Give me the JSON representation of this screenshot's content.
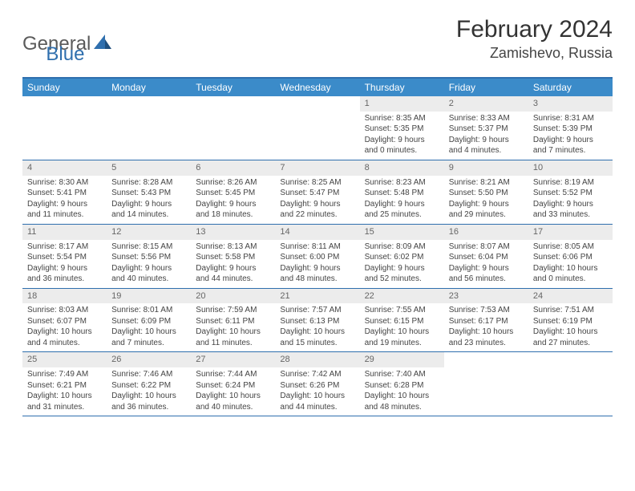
{
  "logo": {
    "text1": "General",
    "text2": "Blue"
  },
  "title": "February 2024",
  "location": "Zamishevo, Russia",
  "colors": {
    "header_bg": "#3b8bc9",
    "border": "#2f6fae",
    "daynum_bg": "#ececec",
    "text": "#444444",
    "logo_gray": "#5a5a5a",
    "logo_blue": "#2f6fae"
  },
  "day_headers": [
    "Sunday",
    "Monday",
    "Tuesday",
    "Wednesday",
    "Thursday",
    "Friday",
    "Saturday"
  ],
  "weeks": [
    [
      {
        "n": "",
        "sr": "",
        "ss": "",
        "dl": ""
      },
      {
        "n": "",
        "sr": "",
        "ss": "",
        "dl": ""
      },
      {
        "n": "",
        "sr": "",
        "ss": "",
        "dl": ""
      },
      {
        "n": "",
        "sr": "",
        "ss": "",
        "dl": ""
      },
      {
        "n": "1",
        "sr": "Sunrise: 8:35 AM",
        "ss": "Sunset: 5:35 PM",
        "dl": "Daylight: 9 hours and 0 minutes."
      },
      {
        "n": "2",
        "sr": "Sunrise: 8:33 AM",
        "ss": "Sunset: 5:37 PM",
        "dl": "Daylight: 9 hours and 4 minutes."
      },
      {
        "n": "3",
        "sr": "Sunrise: 8:31 AM",
        "ss": "Sunset: 5:39 PM",
        "dl": "Daylight: 9 hours and 7 minutes."
      }
    ],
    [
      {
        "n": "4",
        "sr": "Sunrise: 8:30 AM",
        "ss": "Sunset: 5:41 PM",
        "dl": "Daylight: 9 hours and 11 minutes."
      },
      {
        "n": "5",
        "sr": "Sunrise: 8:28 AM",
        "ss": "Sunset: 5:43 PM",
        "dl": "Daylight: 9 hours and 14 minutes."
      },
      {
        "n": "6",
        "sr": "Sunrise: 8:26 AM",
        "ss": "Sunset: 5:45 PM",
        "dl": "Daylight: 9 hours and 18 minutes."
      },
      {
        "n": "7",
        "sr": "Sunrise: 8:25 AM",
        "ss": "Sunset: 5:47 PM",
        "dl": "Daylight: 9 hours and 22 minutes."
      },
      {
        "n": "8",
        "sr": "Sunrise: 8:23 AM",
        "ss": "Sunset: 5:48 PM",
        "dl": "Daylight: 9 hours and 25 minutes."
      },
      {
        "n": "9",
        "sr": "Sunrise: 8:21 AM",
        "ss": "Sunset: 5:50 PM",
        "dl": "Daylight: 9 hours and 29 minutes."
      },
      {
        "n": "10",
        "sr": "Sunrise: 8:19 AM",
        "ss": "Sunset: 5:52 PM",
        "dl": "Daylight: 9 hours and 33 minutes."
      }
    ],
    [
      {
        "n": "11",
        "sr": "Sunrise: 8:17 AM",
        "ss": "Sunset: 5:54 PM",
        "dl": "Daylight: 9 hours and 36 minutes."
      },
      {
        "n": "12",
        "sr": "Sunrise: 8:15 AM",
        "ss": "Sunset: 5:56 PM",
        "dl": "Daylight: 9 hours and 40 minutes."
      },
      {
        "n": "13",
        "sr": "Sunrise: 8:13 AM",
        "ss": "Sunset: 5:58 PM",
        "dl": "Daylight: 9 hours and 44 minutes."
      },
      {
        "n": "14",
        "sr": "Sunrise: 8:11 AM",
        "ss": "Sunset: 6:00 PM",
        "dl": "Daylight: 9 hours and 48 minutes."
      },
      {
        "n": "15",
        "sr": "Sunrise: 8:09 AM",
        "ss": "Sunset: 6:02 PM",
        "dl": "Daylight: 9 hours and 52 minutes."
      },
      {
        "n": "16",
        "sr": "Sunrise: 8:07 AM",
        "ss": "Sunset: 6:04 PM",
        "dl": "Daylight: 9 hours and 56 minutes."
      },
      {
        "n": "17",
        "sr": "Sunrise: 8:05 AM",
        "ss": "Sunset: 6:06 PM",
        "dl": "Daylight: 10 hours and 0 minutes."
      }
    ],
    [
      {
        "n": "18",
        "sr": "Sunrise: 8:03 AM",
        "ss": "Sunset: 6:07 PM",
        "dl": "Daylight: 10 hours and 4 minutes."
      },
      {
        "n": "19",
        "sr": "Sunrise: 8:01 AM",
        "ss": "Sunset: 6:09 PM",
        "dl": "Daylight: 10 hours and 7 minutes."
      },
      {
        "n": "20",
        "sr": "Sunrise: 7:59 AM",
        "ss": "Sunset: 6:11 PM",
        "dl": "Daylight: 10 hours and 11 minutes."
      },
      {
        "n": "21",
        "sr": "Sunrise: 7:57 AM",
        "ss": "Sunset: 6:13 PM",
        "dl": "Daylight: 10 hours and 15 minutes."
      },
      {
        "n": "22",
        "sr": "Sunrise: 7:55 AM",
        "ss": "Sunset: 6:15 PM",
        "dl": "Daylight: 10 hours and 19 minutes."
      },
      {
        "n": "23",
        "sr": "Sunrise: 7:53 AM",
        "ss": "Sunset: 6:17 PM",
        "dl": "Daylight: 10 hours and 23 minutes."
      },
      {
        "n": "24",
        "sr": "Sunrise: 7:51 AM",
        "ss": "Sunset: 6:19 PM",
        "dl": "Daylight: 10 hours and 27 minutes."
      }
    ],
    [
      {
        "n": "25",
        "sr": "Sunrise: 7:49 AM",
        "ss": "Sunset: 6:21 PM",
        "dl": "Daylight: 10 hours and 31 minutes."
      },
      {
        "n": "26",
        "sr": "Sunrise: 7:46 AM",
        "ss": "Sunset: 6:22 PM",
        "dl": "Daylight: 10 hours and 36 minutes."
      },
      {
        "n": "27",
        "sr": "Sunrise: 7:44 AM",
        "ss": "Sunset: 6:24 PM",
        "dl": "Daylight: 10 hours and 40 minutes."
      },
      {
        "n": "28",
        "sr": "Sunrise: 7:42 AM",
        "ss": "Sunset: 6:26 PM",
        "dl": "Daylight: 10 hours and 44 minutes."
      },
      {
        "n": "29",
        "sr": "Sunrise: 7:40 AM",
        "ss": "Sunset: 6:28 PM",
        "dl": "Daylight: 10 hours and 48 minutes."
      },
      {
        "n": "",
        "sr": "",
        "ss": "",
        "dl": ""
      },
      {
        "n": "",
        "sr": "",
        "ss": "",
        "dl": ""
      }
    ]
  ]
}
